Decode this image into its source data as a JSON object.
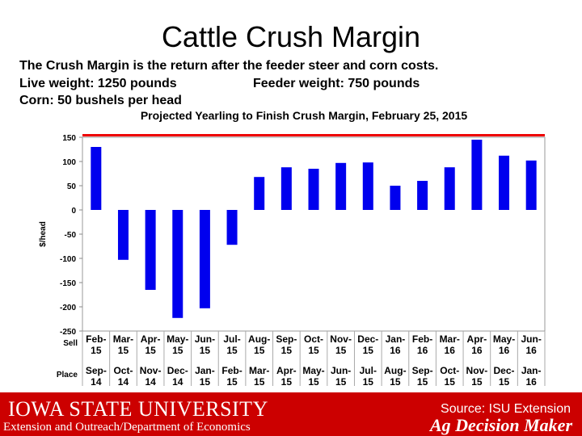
{
  "slide": {
    "title": "Cattle Crush Margin",
    "line1": "The Crush Margin is the return after the feeder steer and corn costs.",
    "line2a": "Live weight:  1250 pounds",
    "line2b": "Feeder weight:  750 pounds",
    "line3": "Corn:  50 bushels per head"
  },
  "footer": {
    "university": "Iowa State University",
    "department": "Extension and Outreach/Department of Economics",
    "source": "Source: ISU Extension",
    "program": "Ag Decision Maker"
  },
  "colors": {
    "bar": "#0000ee",
    "footer": "#cc0000",
    "topline": "#ee0000"
  },
  "chart_data": {
    "type": "bar",
    "title": "Projected Yearling to Finish Crush Margin, February 25, 2015",
    "ylabel": "$/head",
    "ylim": [
      -250,
      150
    ],
    "yticks": [
      150,
      100,
      50,
      0,
      -50,
      -100,
      -150,
      -200,
      -250
    ],
    "row_labels": [
      "Sell",
      "Place"
    ],
    "sell": [
      "Feb-15",
      "Mar-15",
      "Apr-15",
      "May-15",
      "Jun-15",
      "Jul-15",
      "Aug-15",
      "Sep-15",
      "Oct-15",
      "Nov-15",
      "Dec-15",
      "Jan-16",
      "Feb-16",
      "Mar-16",
      "Apr-16",
      "May-16",
      "Jun-16"
    ],
    "place": [
      "Sep-14",
      "Oct-14",
      "Nov-14",
      "Dec-14",
      "Jan-15",
      "Feb-15",
      "Mar-15",
      "Apr-15",
      "May-15",
      "Jun-15",
      "Jul-15",
      "Aug-15",
      "Sep-15",
      "Oct-15",
      "Nov-15",
      "Dec-15",
      "Jan-16"
    ],
    "values": [
      130,
      -103,
      -165,
      -223,
      -203,
      -72,
      68,
      88,
      85,
      97,
      98,
      50,
      60,
      88,
      145,
      112,
      102
    ]
  }
}
